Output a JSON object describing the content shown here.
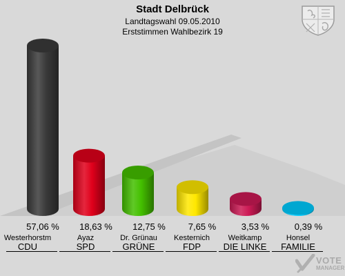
{
  "header": {
    "title": "Stadt Delbrück",
    "subtitle1": "Landtagswahl 09.05.2010",
    "subtitle2": "Erststimmen Wahlbezirk 19"
  },
  "logo": {
    "line1": "VOTE",
    "line2": "MANAGER"
  },
  "colors": {
    "background": "#d9d9d9",
    "CDU": "#3a3a3a",
    "SPD": "#e0001b",
    "GRUENE": "#44c000",
    "FDP": "#ffe800",
    "LINKE": "#cc1a55",
    "FAMILIE": "#00ccff"
  },
  "chart_data": {
    "type": "bar",
    "style": "3d-cylinder",
    "ylim": [
      0,
      57.06
    ],
    "grid": false,
    "legend": "none",
    "categories": [
      "CDU",
      "SPD",
      "GRÜNE",
      "FDP",
      "DIE LINKE",
      "FAMILIE"
    ],
    "candidates": [
      "Westerhorstm",
      "Ayaz",
      "Dr. Grünau",
      "Kesternich",
      "Weitkamp",
      "Honsel"
    ],
    "values": [
      57.06,
      18.63,
      12.75,
      7.65,
      3.53,
      0.39
    ],
    "value_labels": [
      "57,06 %",
      "18,63 %",
      "12,75 %",
      "7,65 %",
      "3,53 %",
      "0,39 %"
    ],
    "colors": [
      "#3a3a3a",
      "#e0001b",
      "#44c000",
      "#ffe800",
      "#cc1a55",
      "#00ccff"
    ]
  }
}
